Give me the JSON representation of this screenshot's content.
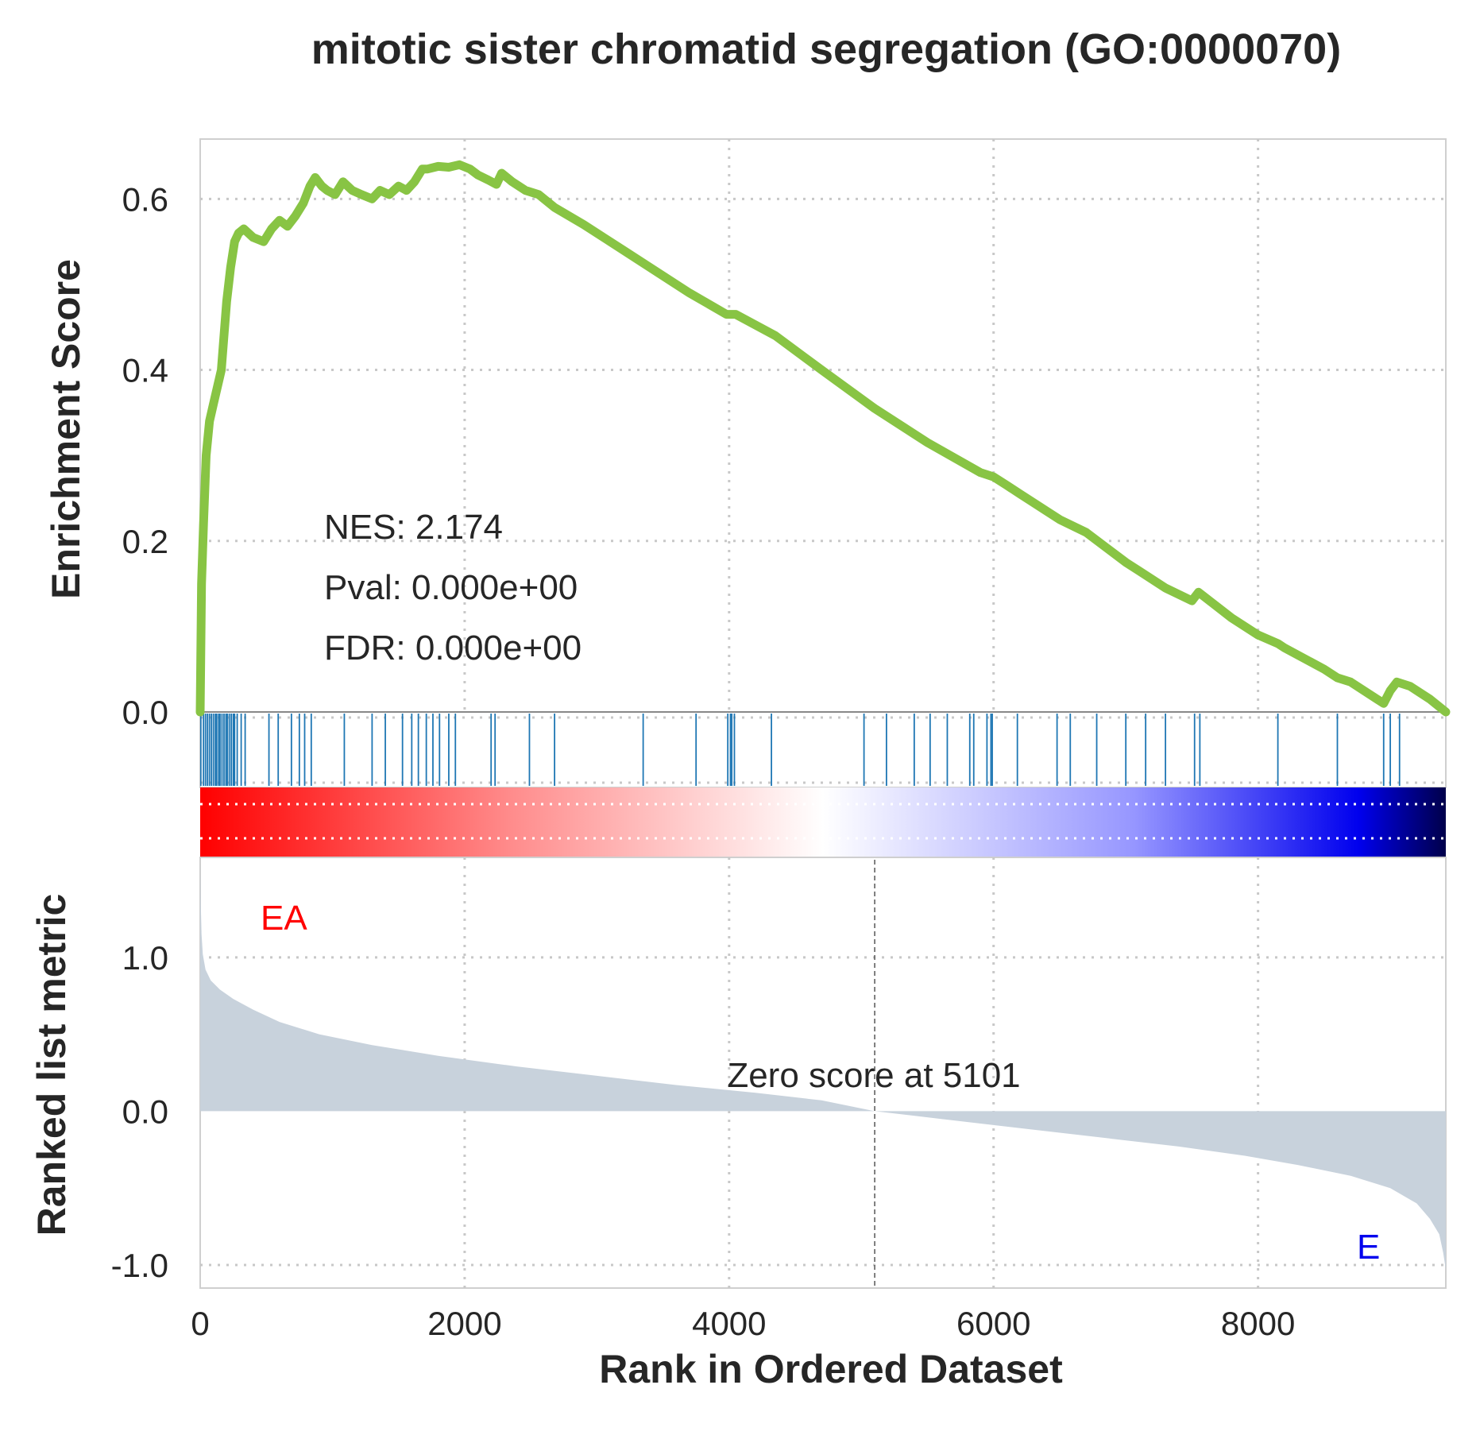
{
  "chart_data": {
    "type": "line",
    "title": "mitotic sister chromatid segregation (GO:0000070)",
    "xlabel": "Rank in Ordered Dataset",
    "xlim": [
      0,
      9420
    ],
    "x_ticks": [
      "0",
      "2000",
      "4000",
      "6000",
      "8000"
    ],
    "x_tick_values": [
      0,
      2000,
      4000,
      6000,
      8000
    ],
    "grid": true,
    "enrichment": {
      "ylabel": "Enrichment Score",
      "ylim": [
        -0.0,
        0.67
      ],
      "y_ticks": [
        "0.0",
        "0.2",
        "0.4",
        "0.6"
      ],
      "y_tick_values": [
        0,
        0.2,
        0.4,
        0.6
      ],
      "line_color": "#88c444",
      "series": {
        "x": [
          0,
          10,
          25,
          45,
          70,
          100,
          130,
          160,
          200,
          230,
          260,
          290,
          330,
          400,
          480,
          540,
          600,
          660,
          720,
          780,
          830,
          870,
          920,
          960,
          1020,
          1080,
          1150,
          1220,
          1300,
          1360,
          1430,
          1500,
          1560,
          1620,
          1680,
          1720,
          1800,
          1880,
          1960,
          2040,
          2100,
          2180,
          2240,
          2280,
          2360,
          2460,
          2560,
          2680,
          2900,
          3200,
          3400,
          3700,
          3980,
          4050,
          4350,
          4700,
          5100,
          5500,
          5900,
          6000,
          6100,
          6200,
          6400,
          6500,
          6700,
          7000,
          7100,
          7300,
          7500,
          7550,
          7800,
          8000,
          8150,
          8200,
          8500,
          8600,
          8700,
          8900,
          8950,
          9000,
          9050,
          9150,
          9300,
          9420
        ],
        "y": [
          0.0,
          0.15,
          0.22,
          0.3,
          0.34,
          0.36,
          0.38,
          0.4,
          0.48,
          0.52,
          0.55,
          0.56,
          0.565,
          0.555,
          0.55,
          0.565,
          0.575,
          0.568,
          0.58,
          0.595,
          0.615,
          0.625,
          0.615,
          0.61,
          0.605,
          0.62,
          0.61,
          0.605,
          0.6,
          0.61,
          0.605,
          0.615,
          0.61,
          0.62,
          0.635,
          0.635,
          0.638,
          0.637,
          0.64,
          0.635,
          0.628,
          0.622,
          0.617,
          0.63,
          0.62,
          0.61,
          0.605,
          0.59,
          0.57,
          0.54,
          0.52,
          0.49,
          0.465,
          0.465,
          0.44,
          0.4,
          0.355,
          0.315,
          0.28,
          0.275,
          0.265,
          0.255,
          0.235,
          0.225,
          0.21,
          0.175,
          0.165,
          0.145,
          0.13,
          0.14,
          0.11,
          0.09,
          0.08,
          0.075,
          0.05,
          0.04,
          0.035,
          0.015,
          0.01,
          0.025,
          0.035,
          0.03,
          0.015,
          0.0
        ]
      },
      "annotations": [
        "NES: 2.174",
        "Pval: 0.000e+00",
        "FDR: 0.000e+00"
      ]
    },
    "hits": {
      "color": "#1f77b4",
      "positions": [
        5,
        25,
        40,
        55,
        70,
        85,
        100,
        115,
        125,
        140,
        150,
        165,
        180,
        195,
        205,
        220,
        235,
        250,
        260,
        280,
        310,
        340,
        520,
        590,
        690,
        750,
        790,
        840,
        1090,
        1300,
        1400,
        1530,
        1600,
        1650,
        1710,
        1760,
        1810,
        1880,
        1930,
        2200,
        2230,
        2490,
        2680,
        3350,
        3750,
        3990,
        4010,
        4020,
        4040,
        4320,
        5020,
        5190,
        5400,
        5520,
        5650,
        5820,
        5850,
        5950,
        5980,
        5990,
        6180,
        6480,
        6580,
        6780,
        7000,
        7150,
        7300,
        7520,
        7560,
        8150,
        8600,
        8950,
        9000,
        9070
      ]
    },
    "metric": {
      "ylabel": "Ranked list metric",
      "ylim": [
        -1.15,
        1.65
      ],
      "y_ticks": [
        "-1.0",
        "0.0",
        "1.0"
      ],
      "y_tick_values": [
        -1,
        0,
        1
      ],
      "fill_color": "#c8d2dc",
      "series": {
        "x": [
          0,
          3,
          10,
          20,
          40,
          80,
          150,
          250,
          400,
          600,
          900,
          1300,
          1800,
          2400,
          3000,
          3600,
          4200,
          4700,
          5101,
          5600,
          6200,
          6800,
          7400,
          7900,
          8300,
          8700,
          9000,
          9200,
          9300,
          9370,
          9400,
          9420
        ],
        "y": [
          1.62,
          1.4,
          1.15,
          1.02,
          0.92,
          0.85,
          0.79,
          0.73,
          0.66,
          0.58,
          0.5,
          0.43,
          0.36,
          0.29,
          0.23,
          0.17,
          0.12,
          0.07,
          0.0,
          -0.05,
          -0.11,
          -0.17,
          -0.23,
          -0.29,
          -0.35,
          -0.42,
          -0.5,
          -0.6,
          -0.7,
          -0.8,
          -0.92,
          -1.03
        ]
      },
      "zero_cross": 5101,
      "zero_label": "Zero score at 5101",
      "pos_label": "EA",
      "neg_label": "E",
      "pos_color": "#ff0000",
      "neg_color": "#0000ee"
    }
  }
}
